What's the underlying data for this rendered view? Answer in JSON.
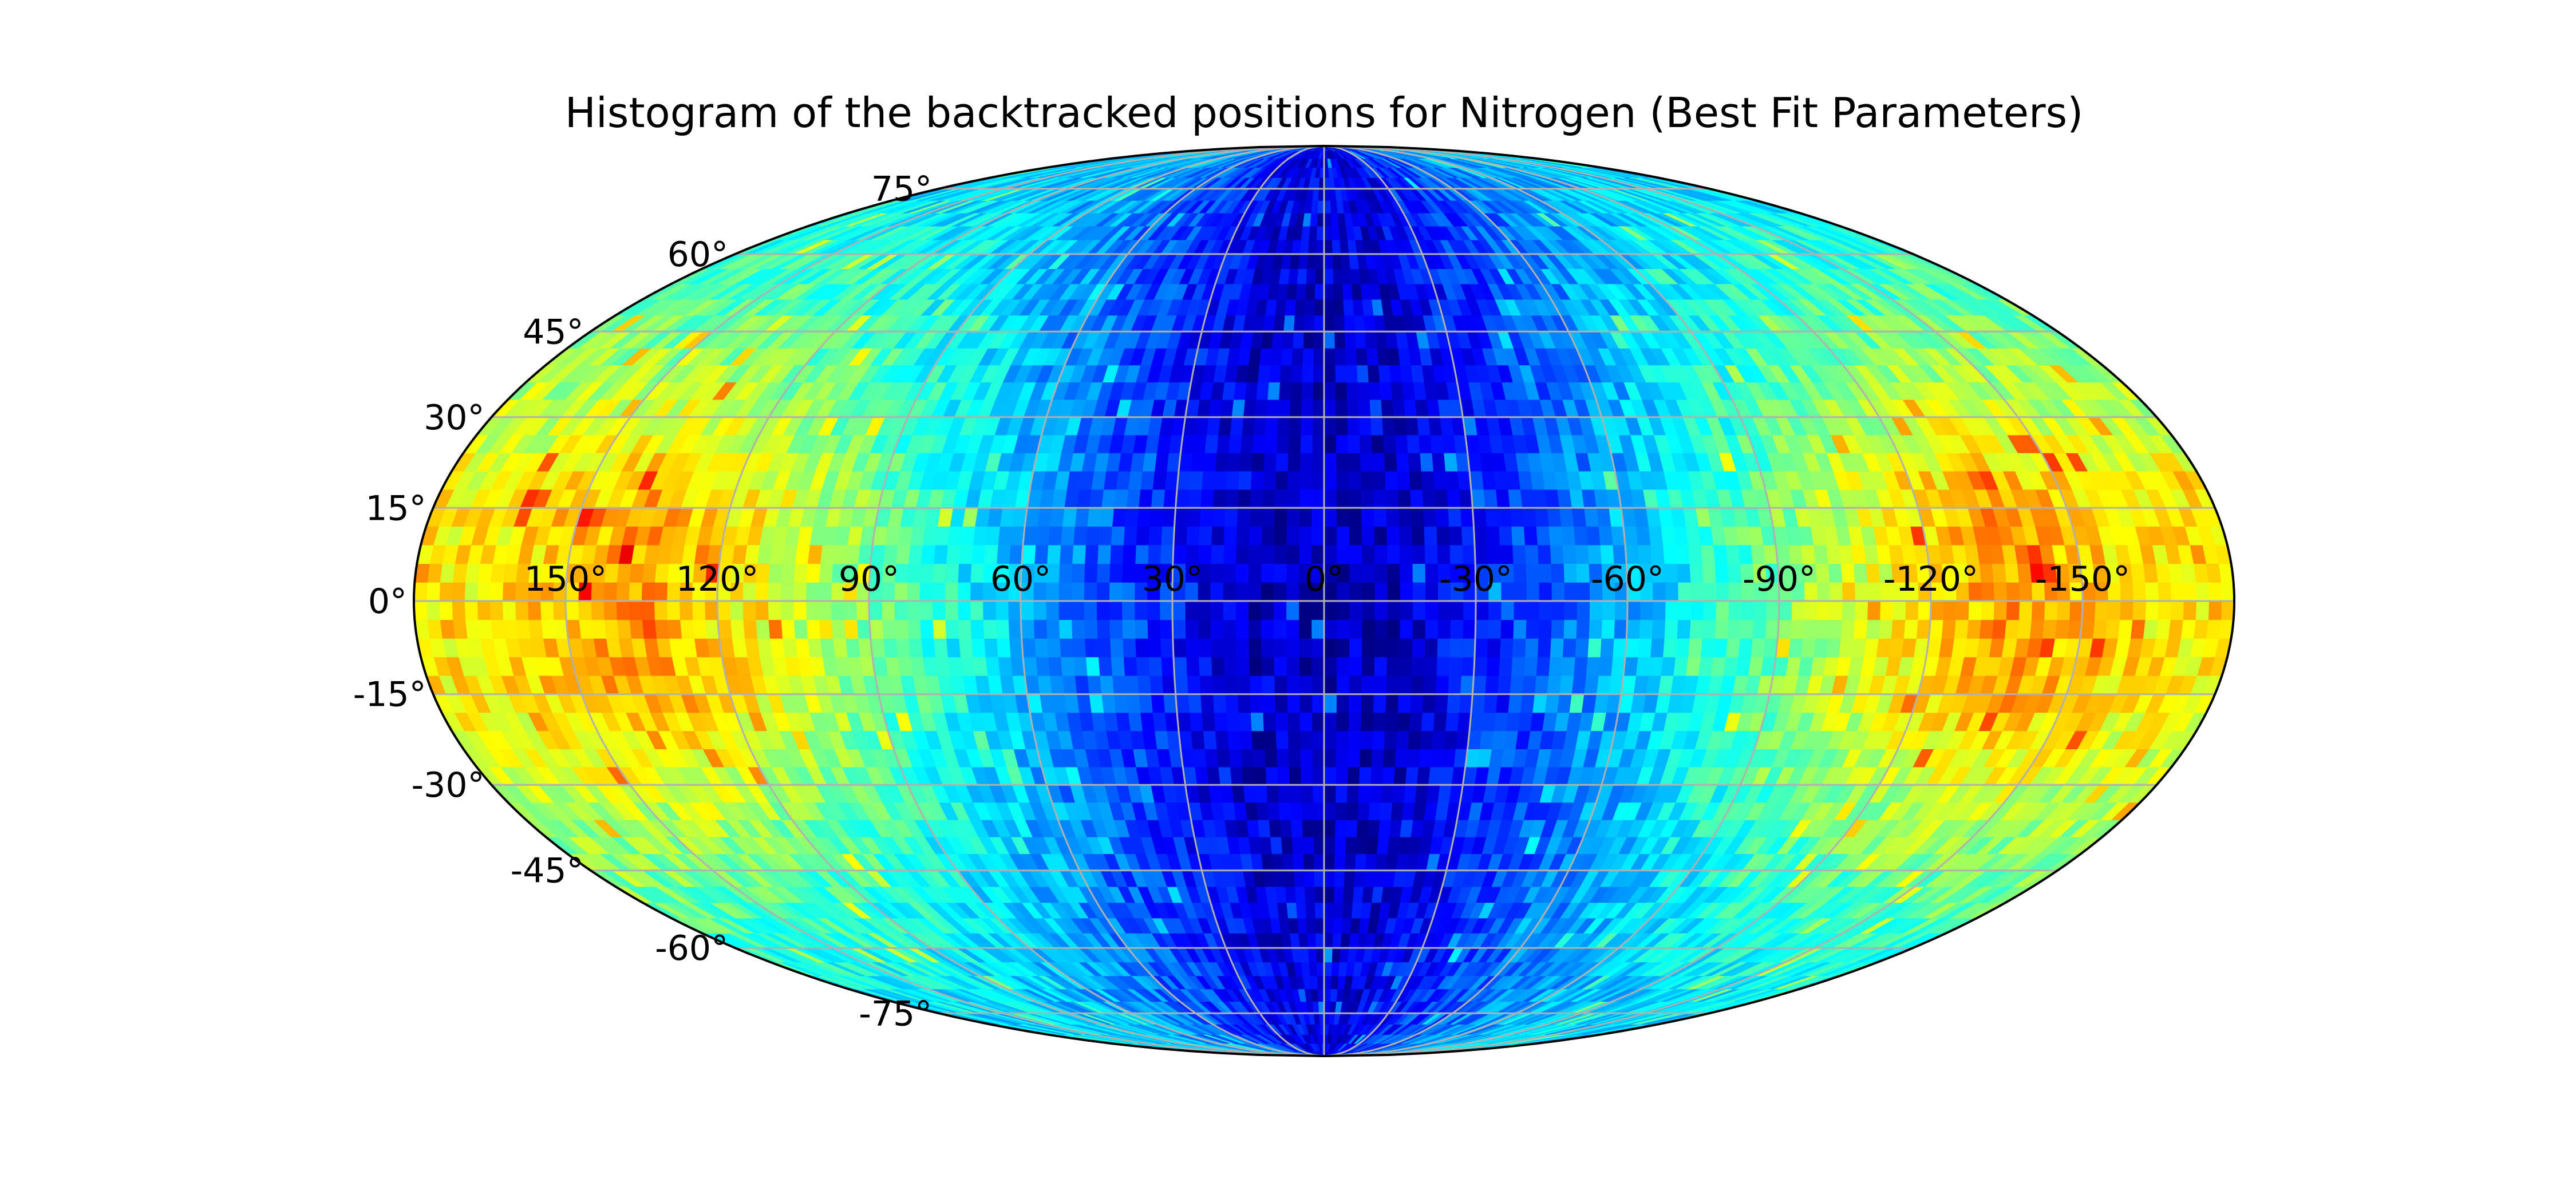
{
  "chart_data": {
    "type": "heatmap",
    "projection": "mollweide",
    "title": "Histogram of the backtracked positions for Nitrogen (Best Fit Parameters)",
    "xlabel": "",
    "ylabel": "",
    "xlim": [
      -180,
      180
    ],
    "ylim": [
      -90,
      90
    ],
    "x_axis_inverted": true,
    "grid": true,
    "colormap": "jet",
    "colorbar": false,
    "longitude_ticks": [
      150,
      120,
      90,
      60,
      30,
      0,
      -30,
      -60,
      -90,
      -120,
      -150
    ],
    "longitude_tick_labels": [
      "150°",
      "120°",
      "90°",
      "60°",
      "30°",
      "0°",
      "-30°",
      "-60°",
      "-90°",
      "-120°",
      "-150°"
    ],
    "latitude_ticks": [
      75,
      60,
      45,
      30,
      15,
      0,
      -15,
      -30,
      -45,
      -60,
      -75
    ],
    "latitude_tick_labels": [
      "75°",
      "60°",
      "45°",
      "30°",
      "15°",
      "0°",
      "-15°",
      "-30°",
      "-45°",
      "-60°",
      "-75°"
    ],
    "intensity_grid": {
      "lon_bin_centers": [
        165,
        135,
        105,
        75,
        45,
        15,
        -15,
        -45,
        -75,
        -105,
        -135,
        -165
      ],
      "lat_bin_centers": [
        75,
        45,
        15,
        -15,
        -45,
        -75
      ],
      "values": [
        [
          0.34,
          0.33,
          0.3,
          0.26,
          0.18,
          0.1,
          0.1,
          0.18,
          0.26,
          0.3,
          0.33,
          0.34
        ],
        [
          0.5,
          0.48,
          0.42,
          0.33,
          0.2,
          0.08,
          0.08,
          0.2,
          0.33,
          0.42,
          0.48,
          0.5
        ],
        [
          0.64,
          0.72,
          0.58,
          0.4,
          0.22,
          0.07,
          0.07,
          0.22,
          0.4,
          0.58,
          0.72,
          0.64
        ],
        [
          0.64,
          0.72,
          0.58,
          0.4,
          0.22,
          0.07,
          0.07,
          0.22,
          0.4,
          0.58,
          0.72,
          0.64
        ],
        [
          0.5,
          0.48,
          0.42,
          0.33,
          0.2,
          0.08,
          0.08,
          0.2,
          0.33,
          0.42,
          0.48,
          0.5
        ],
        [
          0.34,
          0.33,
          0.3,
          0.26,
          0.18,
          0.1,
          0.1,
          0.18,
          0.26,
          0.3,
          0.33,
          0.34
        ]
      ]
    }
  }
}
